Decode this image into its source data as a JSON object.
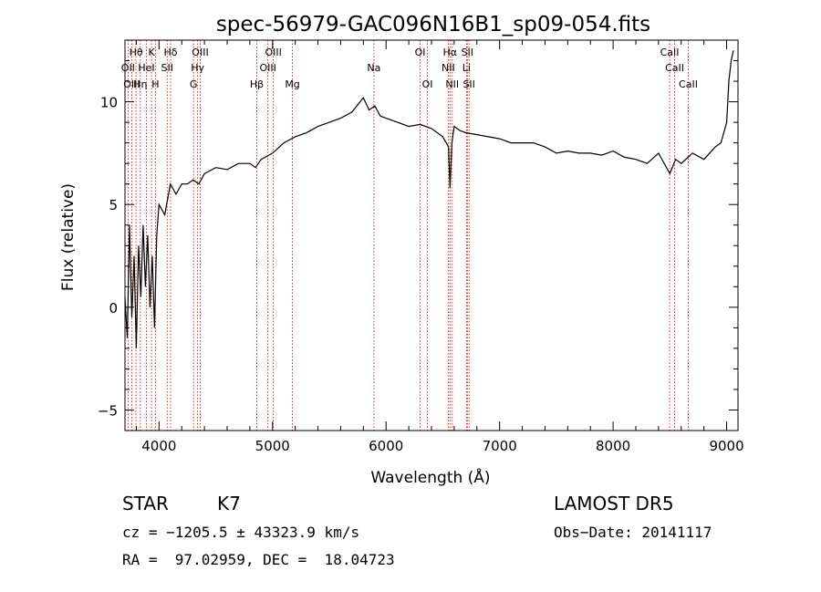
{
  "chart_data": {
    "type": "line",
    "title": "spec-56979-GAC096N16B1_sp09-054.fits",
    "xlabel": "Wavelength (Å)",
    "ylabel": "Flux (relative)",
    "xlim": [
      3700,
      9100
    ],
    "ylim": [
      -6.0,
      13.0
    ],
    "xticks": [
      4000,
      5000,
      6000,
      7000,
      8000,
      9000
    ],
    "xtick_labels": [
      "4000",
      "5000",
      "6000",
      "7000",
      "8000",
      "9000"
    ],
    "yticks": [
      -5,
      0,
      5,
      10
    ],
    "ytick_labels": [
      "−5",
      "0",
      "5",
      "10"
    ],
    "grid": false,
    "line_color": "#000000",
    "marker_color": "#cc0000",
    "series": [
      {
        "x": [
          3700,
          3720,
          3740,
          3760,
          3780,
          3800,
          3820,
          3840,
          3860,
          3880,
          3900,
          3920,
          3940,
          3960,
          3980,
          4000,
          4050,
          4100,
          4150,
          4200,
          4250,
          4300,
          4350,
          4400,
          4500,
          4600,
          4700,
          4800,
          4850,
          4900,
          5000,
          5100,
          5200,
          5300,
          5400,
          5500,
          5600,
          5700,
          5800,
          5850,
          5900,
          5950,
          6000,
          6100,
          6200,
          6300,
          6400,
          6500,
          6550,
          6563,
          6580,
          6600,
          6650,
          6700,
          6800,
          6900,
          7000,
          7100,
          7200,
          7300,
          7400,
          7500,
          7600,
          7700,
          7800,
          7900,
          8000,
          8100,
          8200,
          8300,
          8400,
          8500,
          8550,
          8600,
          8700,
          8800,
          8900,
          8950,
          9000,
          9020,
          9040,
          9060
        ],
        "y": [
          0.5,
          -1.5,
          4.0,
          -0.5,
          2.5,
          -2.0,
          3.0,
          0.5,
          4.0,
          1.0,
          3.5,
          0.0,
          2.5,
          -1.0,
          3.5,
          5.0,
          4.5,
          6.0,
          5.5,
          6.0,
          6.0,
          6.2,
          6.0,
          6.5,
          6.8,
          6.7,
          7.0,
          7.0,
          6.8,
          7.2,
          7.5,
          8.0,
          8.3,
          8.5,
          8.8,
          9.0,
          9.2,
          9.5,
          10.2,
          9.6,
          9.8,
          9.3,
          9.2,
          9.0,
          8.8,
          8.9,
          8.7,
          8.3,
          7.8,
          5.8,
          8.0,
          8.8,
          8.6,
          8.5,
          8.4,
          8.3,
          8.2,
          8.0,
          8.0,
          8.0,
          7.8,
          7.5,
          7.6,
          7.5,
          7.5,
          7.4,
          7.6,
          7.3,
          7.2,
          7.0,
          7.5,
          6.5,
          7.2,
          7.0,
          7.5,
          7.2,
          7.8,
          8.0,
          9.0,
          11.0,
          12.0,
          12.5
        ]
      }
    ],
    "lines": [
      {
        "name": "Hθ",
        "x": 3797,
        "row": 1
      },
      {
        "name": "K",
        "x": 3934,
        "row": 1
      },
      {
        "name": "Hδ",
        "x": 4102,
        "row": 1
      },
      {
        "name": "OIII",
        "x": 4363,
        "row": 1
      },
      {
        "name": "OIII",
        "x": 5007,
        "row": 1
      },
      {
        "name": "OI",
        "x": 6300,
        "row": 1
      },
      {
        "name": "Hα",
        "x": 6563,
        "row": 1
      },
      {
        "name": "SII",
        "x": 6716,
        "row": 1
      },
      {
        "name": "CaII",
        "x": 8498,
        "row": 1
      },
      {
        "name": "OII",
        "x": 3727,
        "row": 2
      },
      {
        "name": "HeI",
        "x": 3889,
        "row": 2
      },
      {
        "name": "SII",
        "x": 4072,
        "row": 2
      },
      {
        "name": "Hγ",
        "x": 4340,
        "row": 2
      },
      {
        "name": "OIII",
        "x": 4959,
        "row": 2
      },
      {
        "name": "Na",
        "x": 5893,
        "row": 2
      },
      {
        "name": "NII",
        "x": 6548,
        "row": 2
      },
      {
        "name": "Li",
        "x": 6708,
        "row": 2
      },
      {
        "name": "CaII",
        "x": 8542,
        "row": 2
      },
      {
        "name": "OIII",
        "x": 3760,
        "row": 3
      },
      {
        "name": "Hη",
        "x": 3835,
        "row": 3
      },
      {
        "name": "H",
        "x": 3968,
        "row": 3
      },
      {
        "name": "G",
        "x": 4304,
        "row": 3
      },
      {
        "name": "Hβ",
        "x": 4861,
        "row": 3
      },
      {
        "name": "Mg",
        "x": 5175,
        "row": 3
      },
      {
        "name": "OI",
        "x": 6364,
        "row": 3
      },
      {
        "name": "NII",
        "x": 6583,
        "row": 3
      },
      {
        "name": "SII",
        "x": 6731,
        "row": 3
      },
      {
        "name": "CaII",
        "x": 8662,
        "row": 3
      }
    ]
  },
  "info": {
    "class": "STAR",
    "subclass": "K7",
    "survey": "LAMOST DR5",
    "cz": "cz = −1205.5 ± 43323.9 km/s",
    "obs_date": "Obs−Date: 20141117",
    "coords": "RA =  97.02959, DEC =  18.04723"
  }
}
